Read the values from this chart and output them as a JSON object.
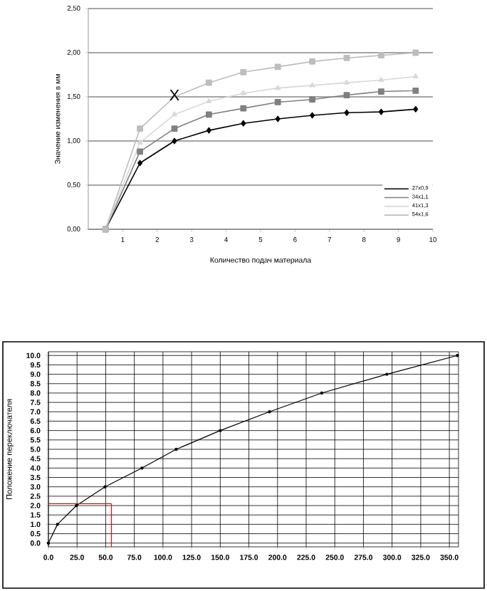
{
  "chart_data": [
    {
      "type": "line",
      "xlabel": "Количество подач материала",
      "ylabel": "Значение изменения в мм",
      "x": [
        0.5,
        1.5,
        2.5,
        3.5,
        4.5,
        5.5,
        6.5,
        7.5,
        8.5,
        9.5
      ],
      "series": [
        {
          "name": "27x0,9",
          "color": "#000000",
          "marker": "diamond",
          "values": [
            0,
            0.75,
            1.0,
            1.12,
            1.2,
            1.25,
            1.29,
            1.32,
            1.33,
            1.36
          ]
        },
        {
          "name": "34x1,1",
          "color": "#808080",
          "marker": "square",
          "values": [
            0,
            0.88,
            1.14,
            1.3,
            1.37,
            1.44,
            1.47,
            1.52,
            1.56,
            1.57
          ]
        },
        {
          "name": "41x1,3",
          "color": "#d8d8d8",
          "marker": "triangle",
          "values": [
            0,
            0.98,
            1.3,
            1.45,
            1.54,
            1.6,
            1.63,
            1.66,
            1.69,
            1.73
          ]
        },
        {
          "name": "54x1,6",
          "color": "#bdbdbd",
          "marker": "square",
          "values": [
            0,
            1.14,
            1.5,
            1.66,
            1.78,
            1.84,
            1.9,
            1.94,
            1.97,
            2.0
          ]
        }
      ],
      "annotations": [
        {
          "text": "X",
          "x": 2.5,
          "y": 1.52
        }
      ],
      "xlim": [
        0,
        10
      ],
      "ylim": [
        0,
        2.5
      ],
      "xticks": [
        1,
        2,
        3,
        4,
        5,
        6,
        7,
        8,
        9,
        10
      ],
      "yticks": [
        {
          "value": 0,
          "label": "0,00"
        },
        {
          "value": 0.5,
          "label": "0,50"
        },
        {
          "value": 1,
          "label": "1,00"
        },
        {
          "value": 1.5,
          "label": "1,50"
        },
        {
          "value": 2,
          "label": "2,00"
        },
        {
          "value": 2.5,
          "label": "2,50"
        }
      ],
      "grid": "y",
      "legend": "bottom right"
    },
    {
      "type": "line",
      "ylabel": "Положение переключателя",
      "x": [
        0,
        7.9,
        24.5,
        49.4,
        81.7,
        111.6,
        150,
        193,
        238.6,
        295.4,
        357
      ],
      "series": [
        {
          "color": "#000000",
          "marker": "circle",
          "values": [
            0,
            1,
            2,
            3,
            4,
            5,
            6,
            7,
            8,
            9,
            10
          ]
        }
      ],
      "ref_lines": [
        {
          "axis": "y",
          "value": 2.1,
          "color": "#ff0000"
        },
        {
          "axis": "x",
          "value": 55,
          "color": "#ff0000"
        }
      ],
      "xlim": [
        0,
        358
      ],
      "ylim": [
        -0.2,
        10.2
      ],
      "xticks": [
        {
          "value": 0,
          "label": "0.0"
        },
        {
          "value": 25,
          "label": "25.0"
        },
        {
          "value": 50,
          "label": "50.0"
        },
        {
          "value": 75,
          "label": "75.0"
        },
        {
          "value": 100,
          "label": "100.0"
        },
        {
          "value": 125,
          "label": "125.0"
        },
        {
          "value": 150,
          "label": "150.0"
        },
        {
          "value": 175,
          "label": "175.0"
        },
        {
          "value": 200,
          "label": "200.0"
        },
        {
          "value": 225,
          "label": "225.0"
        },
        {
          "value": 250,
          "label": "250.0"
        },
        {
          "value": 275,
          "label": "275.0"
        },
        {
          "value": 300,
          "label": "300.0"
        },
        {
          "value": 325,
          "label": "325.0"
        },
        {
          "value": 350,
          "label": "350.0"
        }
      ],
      "yticks": [
        {
          "value": 0,
          "label": "0.0"
        },
        {
          "value": 0.5,
          "label": "0.5"
        },
        {
          "value": 1,
          "label": "1.0"
        },
        {
          "value": 1.5,
          "label": "1.5"
        },
        {
          "value": 2,
          "label": "2.0"
        },
        {
          "value": 2.5,
          "label": "2.5"
        },
        {
          "value": 3,
          "label": "3.0"
        },
        {
          "value": 3.5,
          "label": "3.5"
        },
        {
          "value": 4,
          "label": "4.0"
        },
        {
          "value": 4.5,
          "label": "4.5"
        },
        {
          "value": 5,
          "label": "5.0"
        },
        {
          "value": 5.5,
          "label": "5.5"
        },
        {
          "value": 6,
          "label": "6.0"
        },
        {
          "value": 6.5,
          "label": "6.5"
        },
        {
          "value": 7,
          "label": "7.0"
        },
        {
          "value": 7.5,
          "label": "7.5"
        },
        {
          "value": 8,
          "label": "8.0"
        },
        {
          "value": 8.5,
          "label": "8.5"
        },
        {
          "value": 9,
          "label": "9.0"
        },
        {
          "value": 9.5,
          "label": "9.5"
        },
        {
          "value": 10,
          "label": "10.0"
        }
      ],
      "grid": true
    }
  ]
}
